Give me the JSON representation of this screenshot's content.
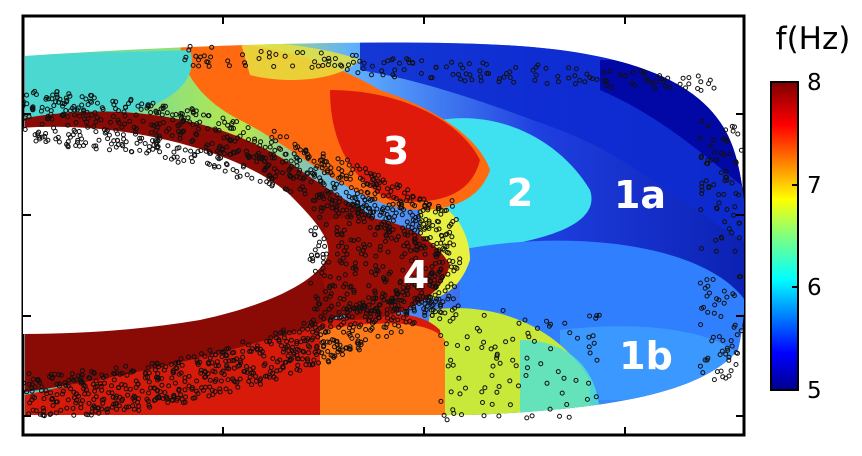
{
  "chart_data": {
    "type": "heatmap",
    "title": "",
    "xlabel": "",
    "ylabel": "",
    "colorbar": {
      "title": "f(Hz)",
      "min": 5,
      "max": 8,
      "ticks": [
        "8",
        "7",
        "6",
        "5"
      ],
      "colormap": "jet"
    },
    "regions": [
      {
        "label": "3",
        "frequency_hz": 7.7
      },
      {
        "label": "2",
        "frequency_hz": 6.3
      },
      {
        "label": "1a",
        "frequency_hz": 5.6
      },
      {
        "label": "4",
        "frequency_hz": 7.8
      },
      {
        "label": "1b",
        "frequency_hz": 5.7
      }
    ]
  },
  "colors": {
    "dark_red": "#7f0000",
    "red": "#e5280b",
    "orange": "#ff8c1a",
    "yellow": "#f2f230",
    "cyan": "#3fd8e8",
    "light_blue": "#2f8fff",
    "blue": "#1f3fe0",
    "navy": "#00008f",
    "marker": "#111111"
  }
}
